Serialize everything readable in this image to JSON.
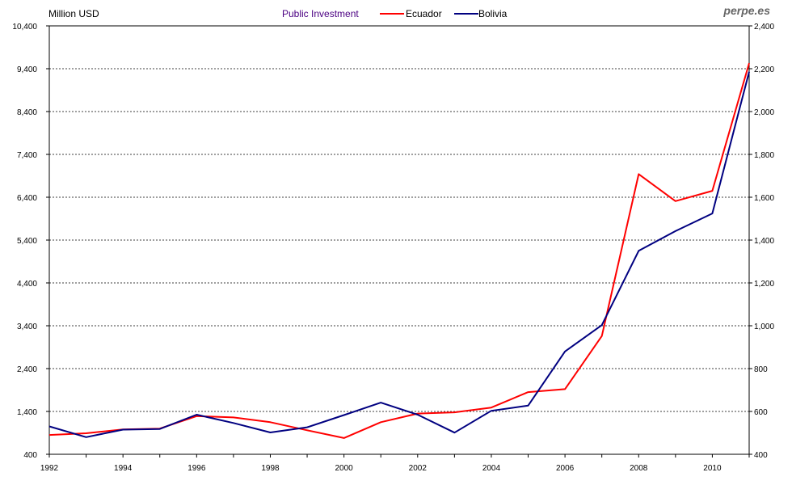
{
  "watermark": "perpe.es",
  "chart_data": {
    "type": "line",
    "title": "Public Investment",
    "ylabel": "Million USD",
    "x": [
      1992,
      1993,
      1994,
      1995,
      1996,
      1997,
      1998,
      1999,
      2000,
      2001,
      2002,
      2003,
      2004,
      2005,
      2006,
      2007,
      2008,
      2009,
      2010,
      2011
    ],
    "x_tick_labels": [
      "1992",
      "1994",
      "1996",
      "1998",
      "2000",
      "2002",
      "2004",
      "2006",
      "2008",
      "2010"
    ],
    "xlim": [
      1992,
      2011
    ],
    "ylim_left": [
      400,
      10400
    ],
    "ylim_right": [
      400,
      2400
    ],
    "y_left_ticks": [
      "400",
      "1,400",
      "2,400",
      "3,400",
      "4,400",
      "5,400",
      "6,400",
      "7,400",
      "8,400",
      "9,400",
      "10,400"
    ],
    "y_right_ticks": [
      "400",
      "600",
      "800",
      "1,000",
      "1,200",
      "1,400",
      "1,600",
      "1,800",
      "2,000",
      "2,200",
      "2,400"
    ],
    "grid": "horizontal dashed",
    "legend_position": "top-center",
    "series": [
      {
        "name": "Ecuador",
        "axis": "left",
        "color": "#ff0000",
        "values": [
          850,
          890,
          980,
          1000,
          1290,
          1260,
          1150,
          960,
          780,
          1150,
          1350,
          1380,
          1490,
          1850,
          1920,
          3160,
          6940,
          6310,
          6550,
          9530
        ]
      },
      {
        "name": "Bolivia",
        "axis": "right",
        "color": "#000080",
        "values": [
          530,
          480,
          515,
          518,
          585,
          546,
          502,
          526,
          583,
          641,
          585,
          501,
          603,
          627,
          880,
          1003,
          1350,
          1442,
          1524,
          2186
        ]
      }
    ]
  }
}
